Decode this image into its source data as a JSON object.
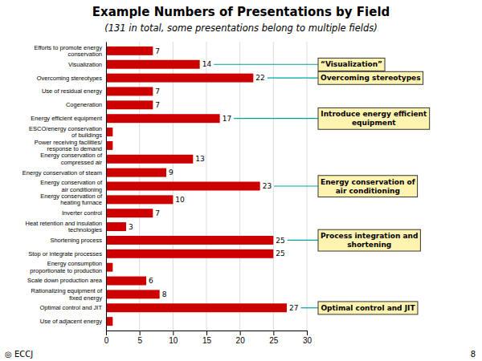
{
  "chart_data": {
    "type": "bar",
    "orientation": "horizontal",
    "title": "Example Numbers of Presentations by Field",
    "subtitle": "(131 in total, some presentations belong to multiple fields)",
    "categories": [
      "Efforts to promote energy\nconservation",
      "Visualization",
      "Overcoming stereotypes",
      "Use of residual energy",
      "Cogeneration",
      "Energy efficient equipment",
      "ESCO/energy conservation\nof buildings",
      "Power receiving facilities/\nresponse to demand",
      "Energy conservation of\ncompressed air",
      "Energy conservation of steam",
      "Energy conservation of\nair conditioning",
      "Energy conservation of\nheating furnace",
      "Inverter control",
      "Heat retention and insulation\ntechnologies",
      "Shortening process",
      "Stop or integrate processes",
      "Energy consumption\nproportionate to production",
      "Scale down production area",
      "Rationalizing equipment of\nfixed energy",
      "Optimal control and JIT",
      "Use of adjacent energy"
    ],
    "values": [
      7,
      14,
      22,
      7,
      7,
      17,
      1,
      1,
      13,
      9,
      23,
      10,
      7,
      3,
      25,
      25,
      1,
      6,
      8,
      27,
      1
    ],
    "value_labels": [
      "7",
      "14",
      "22",
      "7",
      "7",
      "17",
      null,
      null,
      "13",
      "9",
      "23",
      "10",
      "7",
      "3",
      "25",
      "25",
      null,
      "6",
      "8",
      "27",
      null
    ],
    "data_labels": true,
    "color": "#cc0000",
    "xlim": [
      0,
      30
    ],
    "xticks": [
      0,
      5,
      10,
      15,
      20,
      25,
      30
    ],
    "grid": true,
    "annotations": [
      {
        "text": "“Visualization”",
        "category": "Visualization",
        "value": 14
      },
      {
        "text": "Overcoming stereotypes",
        "category": "Overcoming stereotypes",
        "value": 22
      },
      {
        "text": "Introduce energy efficient\nequipment",
        "category": "Energy efficient equipment",
        "value": 17
      },
      {
        "text": "Energy conservation of\nair conditioning",
        "category": "Energy conservation of\nair conditioning",
        "value": 23
      },
      {
        "text": "Process integration and\nshortening",
        "category": "Shortening process",
        "value": 25
      },
      {
        "text": "Optimal control and JIT",
        "category": "Optimal control and JIT",
        "value": 27
      }
    ],
    "footnote": "◎ ECCJ",
    "page_number": "8"
  }
}
